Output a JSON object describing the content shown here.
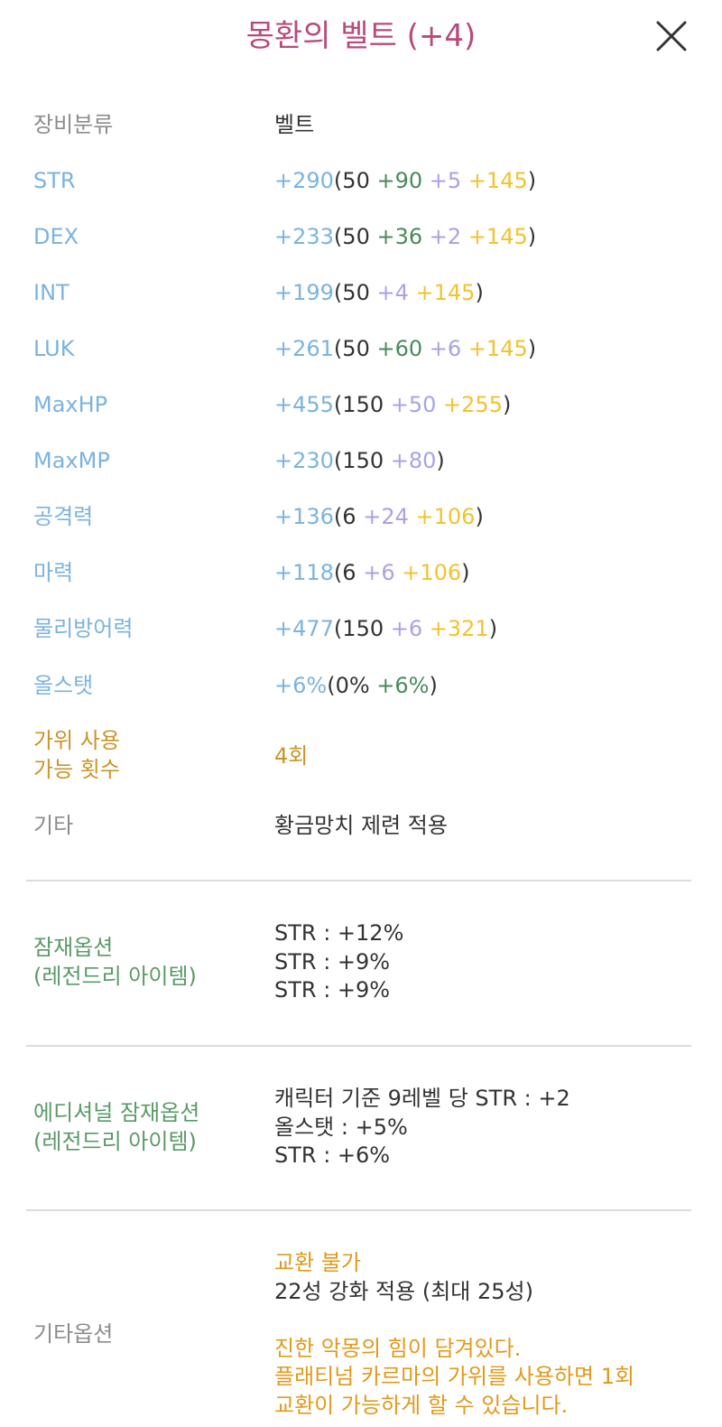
{
  "header": {
    "title": "몽환의 벨트 (+4)"
  },
  "equip_class": {
    "label": "장비분류",
    "value": "벨트"
  },
  "stats": [
    {
      "name": "STR",
      "total": "+290",
      "open": "(",
      "base": "50",
      "star": "+90",
      "flame": "+5",
      "scroll": "+145",
      "close": ")"
    },
    {
      "name": "DEX",
      "total": "+233",
      "open": "(",
      "base": "50",
      "star": "+36",
      "flame": "+2",
      "scroll": "+145",
      "close": ")"
    },
    {
      "name": "INT",
      "total": "+199",
      "open": "(",
      "base": "50",
      "flame": "+4",
      "scroll": "+145",
      "close": ")"
    },
    {
      "name": "LUK",
      "total": "+261",
      "open": "(",
      "base": "50",
      "star": "+60",
      "flame": "+6",
      "scroll": "+145",
      "close": ")"
    },
    {
      "name": "MaxHP",
      "total": "+455",
      "open": "(",
      "base": "150",
      "flame": "+50",
      "scroll": "+255",
      "close": ")"
    },
    {
      "name": "MaxMP",
      "total": "+230",
      "open": "(",
      "base": "150",
      "flame": "+80",
      "close": ")"
    },
    {
      "name": "공격력",
      "total": "+136",
      "open": "(",
      "base": "6",
      "flame": "+24",
      "scroll": "+106",
      "close": ")"
    },
    {
      "name": "마력",
      "total": "+118",
      "open": "(",
      "base": "6",
      "flame": "+6",
      "scroll": "+106",
      "close": ")"
    },
    {
      "name": "물리방어력",
      "total": "+477",
      "open": "(",
      "base": "150",
      "flame": "+6",
      "scroll": "+321",
      "close": ")"
    },
    {
      "name": "올스탯",
      "total": "+6%",
      "open": "(",
      "base": "0%",
      "star": "+6%",
      "close": ")"
    }
  ],
  "scissors": {
    "label_line1": "가위 사용",
    "label_line2": "가능 횟수",
    "value": "4회"
  },
  "etc": {
    "label": "기타",
    "value": "황금망치 제련 적용"
  },
  "potential": {
    "label_line1": "잠재옵션",
    "label_line2": "(레전드리 아이템)",
    "lines": [
      "STR : +12%",
      "STR : +9%",
      "STR : +9%"
    ]
  },
  "additional_potential": {
    "label_line1": "에디셔널 잠재옵션",
    "label_line2": "(레전드리 아이템)",
    "lines": [
      "캐릭터 기준 9레벨 당 STR : +2",
      "올스탯 : +5%",
      "STR : +6%"
    ]
  },
  "other_options": {
    "label": "기타옵션",
    "trade": "교환 불가",
    "starforce": "22성 강화 적용 (최대 25성)",
    "desc_line1": "진한 악몽의 힘이 담겨있다.",
    "desc_line2": "플래티넘 카르마의 가위를 사용하면 1회",
    "desc_line3": "교환이 가능하게 할 수 있습니다."
  },
  "colors": {
    "title": "#b84b7c",
    "stat_label": "#7bb3e0",
    "star_bonus": "#4a8a5a",
    "flame_bonus": "#a9a2e6",
    "scroll_bonus": "#f2c230",
    "potential_label": "#5a9a68",
    "other_text": "#e09a1c"
  },
  "icons": {
    "close": "close-icon"
  }
}
